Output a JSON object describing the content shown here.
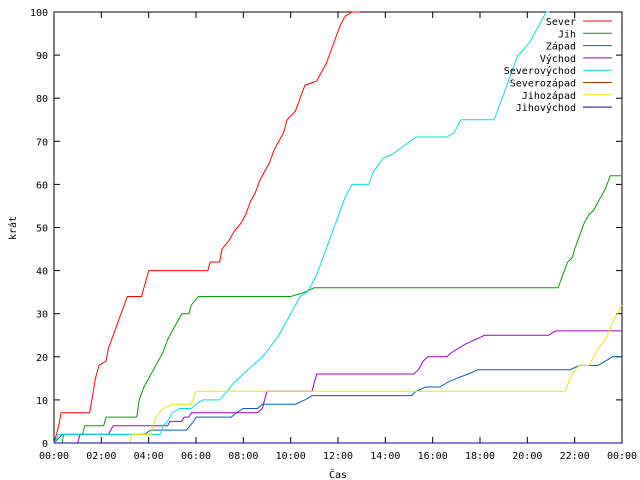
{
  "chart_data": {
    "type": "line",
    "xlabel": "Čas",
    "ylabel": "krát",
    "xlim": [
      0,
      24
    ],
    "ylim": [
      0,
      100
    ],
    "x_ticks": [
      {
        "v": 0,
        "label": "00:00"
      },
      {
        "v": 2,
        "label": "02:00"
      },
      {
        "v": 4,
        "label": "04:00"
      },
      {
        "v": 6,
        "label": "06:00"
      },
      {
        "v": 8,
        "label": "08:00"
      },
      {
        "v": 10,
        "label": "10:00"
      },
      {
        "v": 12,
        "label": "12:00"
      },
      {
        "v": 14,
        "label": "14:00"
      },
      {
        "v": 16,
        "label": "16:00"
      },
      {
        "v": 18,
        "label": "18:00"
      },
      {
        "v": 20,
        "label": "20:00"
      },
      {
        "v": 22,
        "label": "22:00"
      },
      {
        "v": 24,
        "label": "00:00"
      }
    ],
    "y_ticks": [
      0,
      10,
      20,
      30,
      40,
      50,
      60,
      70,
      80,
      90,
      100
    ],
    "grid": false,
    "legend_position": "top-right",
    "series": [
      {
        "name": "Sever",
        "color": "#ff0000",
        "points": [
          [
            0,
            0
          ],
          [
            0.1,
            2
          ],
          [
            0.2,
            4
          ],
          [
            0.3,
            7
          ],
          [
            1.5,
            7
          ],
          [
            1.6,
            10
          ],
          [
            1.75,
            15
          ],
          [
            1.9,
            18
          ],
          [
            2.2,
            19
          ],
          [
            2.3,
            22
          ],
          [
            2.5,
            25
          ],
          [
            2.7,
            28
          ],
          [
            2.9,
            31
          ],
          [
            3.1,
            34
          ],
          [
            3.7,
            34
          ],
          [
            3.85,
            37
          ],
          [
            4.0,
            40
          ],
          [
            6.5,
            40
          ],
          [
            6.6,
            42
          ],
          [
            7.0,
            42
          ],
          [
            7.1,
            45
          ],
          [
            7.4,
            47
          ],
          [
            7.6,
            49
          ],
          [
            7.9,
            51
          ],
          [
            8.1,
            53
          ],
          [
            8.3,
            56
          ],
          [
            8.5,
            58
          ],
          [
            8.7,
            61
          ],
          [
            8.9,
            63
          ],
          [
            9.1,
            65
          ],
          [
            9.3,
            68
          ],
          [
            9.5,
            70
          ],
          [
            9.7,
            72
          ],
          [
            9.85,
            75
          ],
          [
            10.2,
            77
          ],
          [
            10.4,
            80
          ],
          [
            10.6,
            83
          ],
          [
            11.1,
            84
          ],
          [
            11.3,
            86
          ],
          [
            11.5,
            88
          ],
          [
            11.7,
            91
          ],
          [
            11.9,
            94
          ],
          [
            12.1,
            97
          ],
          [
            12.3,
            99
          ],
          [
            12.6,
            100
          ],
          [
            12.95,
            100
          ]
        ]
      },
      {
        "name": "Jih",
        "color": "#00a000",
        "points": [
          [
            0,
            0
          ],
          [
            0.35,
            0
          ],
          [
            0.4,
            2
          ],
          [
            1.2,
            2
          ],
          [
            1.3,
            4
          ],
          [
            2.1,
            4
          ],
          [
            2.2,
            6
          ],
          [
            3.5,
            6
          ],
          [
            3.6,
            10
          ],
          [
            3.8,
            13
          ],
          [
            4.0,
            15
          ],
          [
            4.2,
            17
          ],
          [
            4.4,
            19
          ],
          [
            4.6,
            21
          ],
          [
            4.8,
            24
          ],
          [
            5.0,
            26
          ],
          [
            5.2,
            28
          ],
          [
            5.4,
            30
          ],
          [
            5.7,
            30
          ],
          [
            5.8,
            32
          ],
          [
            6.1,
            34
          ],
          [
            10.0,
            34
          ],
          [
            10.6,
            35
          ],
          [
            11.0,
            36
          ],
          [
            21.3,
            36
          ],
          [
            21.5,
            39
          ],
          [
            21.7,
            42
          ],
          [
            21.9,
            43
          ],
          [
            22.0,
            45
          ],
          [
            22.2,
            48
          ],
          [
            22.4,
            51
          ],
          [
            22.6,
            53
          ],
          [
            22.8,
            54
          ],
          [
            23.0,
            56
          ],
          [
            23.3,
            59
          ],
          [
            23.5,
            62
          ],
          [
            24,
            62
          ]
        ]
      },
      {
        "name": "Západ",
        "color": "#0060c0",
        "points": [
          [
            0,
            0
          ],
          [
            0.35,
            2
          ],
          [
            3.8,
            2
          ],
          [
            4.1,
            3
          ],
          [
            5.6,
            3
          ],
          [
            5.9,
            5
          ],
          [
            6.0,
            6
          ],
          [
            7.5,
            6
          ],
          [
            7.7,
            7
          ],
          [
            8.0,
            8
          ],
          [
            8.6,
            8
          ],
          [
            8.8,
            9
          ],
          [
            10.2,
            9
          ],
          [
            10.6,
            10
          ],
          [
            10.9,
            11
          ],
          [
            15.1,
            11
          ],
          [
            15.3,
            12
          ],
          [
            15.7,
            13
          ],
          [
            16.3,
            13
          ],
          [
            16.6,
            14
          ],
          [
            17.0,
            15
          ],
          [
            17.5,
            16
          ],
          [
            17.9,
            17
          ],
          [
            21.8,
            17
          ],
          [
            22.2,
            18
          ],
          [
            23.0,
            18
          ],
          [
            23.3,
            19
          ],
          [
            23.6,
            20
          ],
          [
            24,
            20
          ]
        ]
      },
      {
        "name": "Východ",
        "color": "#a000c0",
        "points": [
          [
            0,
            0
          ],
          [
            1.0,
            0
          ],
          [
            1.1,
            2
          ],
          [
            2.3,
            2
          ],
          [
            2.5,
            4
          ],
          [
            4.8,
            4
          ],
          [
            4.9,
            5
          ],
          [
            5.4,
            5
          ],
          [
            5.5,
            6
          ],
          [
            5.7,
            6
          ],
          [
            5.8,
            7
          ],
          [
            8.6,
            7
          ],
          [
            8.8,
            8
          ],
          [
            8.9,
            10
          ],
          [
            9.0,
            12
          ],
          [
            10.9,
            12
          ],
          [
            11.0,
            14
          ],
          [
            11.1,
            16
          ],
          [
            15.2,
            16
          ],
          [
            15.4,
            17
          ],
          [
            15.6,
            19
          ],
          [
            15.8,
            20
          ],
          [
            16.6,
            20
          ],
          [
            16.8,
            21
          ],
          [
            17.1,
            22
          ],
          [
            17.4,
            23
          ],
          [
            17.8,
            24
          ],
          [
            18.2,
            25
          ],
          [
            20.9,
            25
          ],
          [
            21.2,
            26
          ],
          [
            24,
            26
          ]
        ]
      },
      {
        "name": "Severovýchod",
        "color": "#00e0e0",
        "points": [
          [
            0,
            0
          ],
          [
            0.2,
            2
          ],
          [
            4.5,
            2
          ],
          [
            4.6,
            4
          ],
          [
            4.8,
            5
          ],
          [
            5.0,
            7
          ],
          [
            5.3,
            8
          ],
          [
            5.8,
            8
          ],
          [
            6.0,
            9
          ],
          [
            6.3,
            10
          ],
          [
            7.0,
            10
          ],
          [
            7.3,
            12
          ],
          [
            7.6,
            14
          ],
          [
            8.0,
            16
          ],
          [
            8.4,
            18
          ],
          [
            8.8,
            20
          ],
          [
            9.1,
            22
          ],
          [
            9.5,
            25
          ],
          [
            9.8,
            28
          ],
          [
            10.1,
            31
          ],
          [
            10.4,
            34
          ],
          [
            10.7,
            35
          ],
          [
            10.9,
            37
          ],
          [
            11.1,
            39
          ],
          [
            11.3,
            42
          ],
          [
            11.5,
            45
          ],
          [
            11.7,
            48
          ],
          [
            11.9,
            51
          ],
          [
            12.1,
            54
          ],
          [
            12.3,
            57
          ],
          [
            12.6,
            60
          ],
          [
            13.3,
            60
          ],
          [
            13.5,
            63
          ],
          [
            13.9,
            66
          ],
          [
            14.3,
            67
          ],
          [
            14.8,
            69
          ],
          [
            15.3,
            71
          ],
          [
            16.6,
            71
          ],
          [
            16.9,
            72
          ],
          [
            17.2,
            75
          ],
          [
            18.6,
            75
          ],
          [
            18.8,
            78
          ],
          [
            19.0,
            81
          ],
          [
            19.2,
            84
          ],
          [
            19.4,
            87
          ],
          [
            19.6,
            90
          ],
          [
            19.8,
            91
          ],
          [
            20.1,
            93
          ],
          [
            20.4,
            96
          ],
          [
            20.6,
            98
          ],
          [
            20.8,
            100
          ],
          [
            20.95,
            100
          ]
        ]
      },
      {
        "name": "Severozápad",
        "color": "#a04000",
        "points": [
          [
            0,
            0
          ],
          [
            24,
            0
          ]
        ]
      },
      {
        "name": "Jihozápad",
        "color": "#e8e800",
        "points": [
          [
            0,
            0
          ],
          [
            3.2,
            0
          ],
          [
            3.3,
            2
          ],
          [
            4.1,
            2
          ],
          [
            4.3,
            6
          ],
          [
            4.6,
            8
          ],
          [
            5.0,
            9
          ],
          [
            5.8,
            9
          ],
          [
            6.0,
            12
          ],
          [
            21.6,
            12
          ],
          [
            21.8,
            15
          ],
          [
            22.0,
            17
          ],
          [
            22.2,
            18
          ],
          [
            22.6,
            18
          ],
          [
            22.8,
            20
          ],
          [
            23.0,
            22
          ],
          [
            23.3,
            24
          ],
          [
            23.6,
            28
          ],
          [
            23.8,
            30
          ],
          [
            24,
            32
          ]
        ]
      },
      {
        "name": "Jihovýchod",
        "color": "#0000c0",
        "points": [
          [
            0,
            0
          ],
          [
            24,
            0
          ]
        ]
      }
    ]
  }
}
